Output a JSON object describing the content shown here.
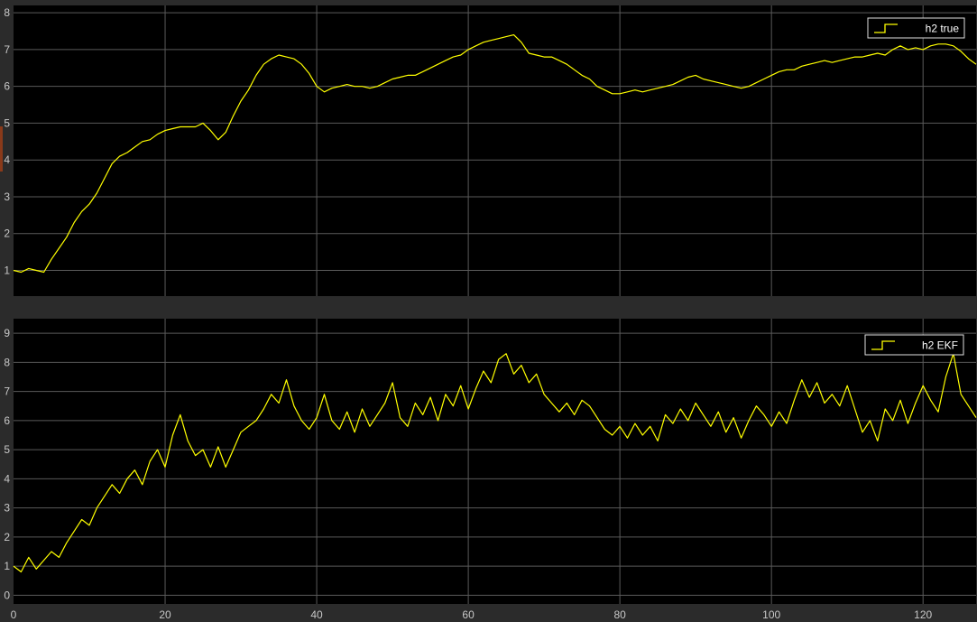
{
  "colors": {
    "background": "#2b2b2b",
    "plot_bg": "#000000",
    "grid": "#5a5a5a",
    "trace": "#ffff00",
    "tick_text": "#c8c8c8",
    "legend_border": "#e0e0e0",
    "edge_accent": "#8a3a1a"
  },
  "chart_data": [
    {
      "type": "line",
      "title": "",
      "xlabel": "",
      "ylabel": "",
      "xlim": [
        0,
        127
      ],
      "ylim": [
        0.3,
        8.2
      ],
      "grid": true,
      "legend_position": "top-right",
      "legend_icon": "step-line-icon",
      "x_ticks": [
        "0",
        "20",
        "40",
        "60",
        "80",
        "100",
        "120"
      ],
      "y_ticks": [
        "1",
        "2",
        "3",
        "4",
        "5",
        "6",
        "7",
        "8"
      ],
      "series": [
        {
          "name": "h2 true",
          "color": "#ffff00",
          "points": [
            [
              0,
              1.0
            ],
            [
              1,
              0.95
            ],
            [
              2,
              1.05
            ],
            [
              3,
              1.0
            ],
            [
              4,
              0.95
            ],
            [
              5,
              1.3
            ],
            [
              6,
              1.6
            ],
            [
              7,
              1.9
            ],
            [
              8,
              2.3
            ],
            [
              9,
              2.6
            ],
            [
              10,
              2.8
            ],
            [
              11,
              3.1
            ],
            [
              12,
              3.5
            ],
            [
              13,
              3.9
            ],
            [
              14,
              4.1
            ],
            [
              15,
              4.2
            ],
            [
              16,
              4.35
            ],
            [
              17,
              4.5
            ],
            [
              18,
              4.55
            ],
            [
              19,
              4.7
            ],
            [
              20,
              4.8
            ],
            [
              21,
              4.85
            ],
            [
              22,
              4.9
            ],
            [
              23,
              4.9
            ],
            [
              24,
              4.9
            ],
            [
              25,
              5.0
            ],
            [
              26,
              4.8
            ],
            [
              27,
              4.55
            ],
            [
              28,
              4.75
            ],
            [
              29,
              5.2
            ],
            [
              30,
              5.6
            ],
            [
              31,
              5.9
            ],
            [
              32,
              6.3
            ],
            [
              33,
              6.6
            ],
            [
              34,
              6.75
            ],
            [
              35,
              6.85
            ],
            [
              36,
              6.8
            ],
            [
              37,
              6.75
            ],
            [
              38,
              6.6
            ],
            [
              39,
              6.35
            ],
            [
              40,
              6.0
            ],
            [
              41,
              5.85
            ],
            [
              42,
              5.95
            ],
            [
              43,
              6.0
            ],
            [
              44,
              6.05
            ],
            [
              45,
              6.0
            ],
            [
              46,
              6.0
            ],
            [
              47,
              5.95
            ],
            [
              48,
              6.0
            ],
            [
              49,
              6.1
            ],
            [
              50,
              6.2
            ],
            [
              51,
              6.25
            ],
            [
              52,
              6.3
            ],
            [
              53,
              6.3
            ],
            [
              54,
              6.4
            ],
            [
              55,
              6.5
            ],
            [
              56,
              6.6
            ],
            [
              57,
              6.7
            ],
            [
              58,
              6.8
            ],
            [
              59,
              6.85
            ],
            [
              60,
              7.0
            ],
            [
              61,
              7.1
            ],
            [
              62,
              7.2
            ],
            [
              63,
              7.25
            ],
            [
              64,
              7.3
            ],
            [
              65,
              7.35
            ],
            [
              66,
              7.4
            ],
            [
              67,
              7.2
            ],
            [
              68,
              6.9
            ],
            [
              69,
              6.85
            ],
            [
              70,
              6.8
            ],
            [
              71,
              6.8
            ],
            [
              72,
              6.7
            ],
            [
              73,
              6.6
            ],
            [
              74,
              6.45
            ],
            [
              75,
              6.3
            ],
            [
              76,
              6.2
            ],
            [
              77,
              6.0
            ],
            [
              78,
              5.9
            ],
            [
              79,
              5.8
            ],
            [
              80,
              5.8
            ],
            [
              81,
              5.85
            ],
            [
              82,
              5.9
            ],
            [
              83,
              5.85
            ],
            [
              84,
              5.9
            ],
            [
              85,
              5.95
            ],
            [
              86,
              6.0
            ],
            [
              87,
              6.05
            ],
            [
              88,
              6.15
            ],
            [
              89,
              6.25
            ],
            [
              90,
              6.3
            ],
            [
              91,
              6.2
            ],
            [
              92,
              6.15
            ],
            [
              93,
              6.1
            ],
            [
              94,
              6.05
            ],
            [
              95,
              6.0
            ],
            [
              96,
              5.95
            ],
            [
              97,
              6.0
            ],
            [
              98,
              6.1
            ],
            [
              99,
              6.2
            ],
            [
              100,
              6.3
            ],
            [
              101,
              6.4
            ],
            [
              102,
              6.45
            ],
            [
              103,
              6.45
            ],
            [
              104,
              6.55
            ],
            [
              105,
              6.6
            ],
            [
              106,
              6.65
            ],
            [
              107,
              6.7
            ],
            [
              108,
              6.65
            ],
            [
              109,
              6.7
            ],
            [
              110,
              6.75
            ],
            [
              111,
              6.8
            ],
            [
              112,
              6.8
            ],
            [
              113,
              6.85
            ],
            [
              114,
              6.9
            ],
            [
              115,
              6.85
            ],
            [
              116,
              7.0
            ],
            [
              117,
              7.1
            ],
            [
              118,
              7.0
            ],
            [
              119,
              7.05
            ],
            [
              120,
              7.0
            ],
            [
              121,
              7.1
            ],
            [
              122,
              7.15
            ],
            [
              123,
              7.15
            ],
            [
              124,
              7.1
            ],
            [
              125,
              6.95
            ],
            [
              126,
              6.75
            ],
            [
              127,
              6.6
            ]
          ]
        }
      ]
    },
    {
      "type": "line",
      "title": "",
      "xlabel": "",
      "ylabel": "",
      "xlim": [
        0,
        127
      ],
      "ylim": [
        -0.3,
        9.5
      ],
      "grid": true,
      "legend_position": "top-right",
      "legend_icon": "step-line-icon",
      "x_ticks": [
        "0",
        "20",
        "40",
        "60",
        "80",
        "100",
        "120"
      ],
      "y_ticks": [
        "0",
        "1",
        "2",
        "3",
        "4",
        "5",
        "6",
        "7",
        "8",
        "9"
      ],
      "series": [
        {
          "name": "h2 EKF",
          "color": "#ffff00",
          "points": [
            [
              0,
              1.0
            ],
            [
              1,
              0.8
            ],
            [
              2,
              1.3
            ],
            [
              3,
              0.9
            ],
            [
              4,
              1.2
            ],
            [
              5,
              1.5
            ],
            [
              6,
              1.3
            ],
            [
              7,
              1.8
            ],
            [
              8,
              2.2
            ],
            [
              9,
              2.6
            ],
            [
              10,
              2.4
            ],
            [
              11,
              3.0
            ],
            [
              12,
              3.4
            ],
            [
              13,
              3.8
            ],
            [
              14,
              3.5
            ],
            [
              15,
              4.0
            ],
            [
              16,
              4.3
            ],
            [
              17,
              3.8
            ],
            [
              18,
              4.6
            ],
            [
              19,
              5.0
            ],
            [
              20,
              4.4
            ],
            [
              21,
              5.5
            ],
            [
              22,
              6.2
            ],
            [
              23,
              5.3
            ],
            [
              24,
              4.8
            ],
            [
              25,
              5.0
            ],
            [
              26,
              4.4
            ],
            [
              27,
              5.1
            ],
            [
              28,
              4.4
            ],
            [
              29,
              5.0
            ],
            [
              30,
              5.6
            ],
            [
              31,
              5.8
            ],
            [
              32,
              6.0
            ],
            [
              33,
              6.4
            ],
            [
              34,
              6.9
            ],
            [
              35,
              6.6
            ],
            [
              36,
              7.4
            ],
            [
              37,
              6.5
            ],
            [
              38,
              6.0
            ],
            [
              39,
              5.7
            ],
            [
              40,
              6.1
            ],
            [
              41,
              6.9
            ],
            [
              42,
              6.0
            ],
            [
              43,
              5.7
            ],
            [
              44,
              6.3
            ],
            [
              45,
              5.6
            ],
            [
              46,
              6.4
            ],
            [
              47,
              5.8
            ],
            [
              48,
              6.2
            ],
            [
              49,
              6.6
            ],
            [
              50,
              7.3
            ],
            [
              51,
              6.1
            ],
            [
              52,
              5.8
            ],
            [
              53,
              6.6
            ],
            [
              54,
              6.2
            ],
            [
              55,
              6.8
            ],
            [
              56,
              6.0
            ],
            [
              57,
              6.9
            ],
            [
              58,
              6.5
            ],
            [
              59,
              7.2
            ],
            [
              60,
              6.4
            ],
            [
              61,
              7.1
            ],
            [
              62,
              7.7
            ],
            [
              63,
              7.3
            ],
            [
              64,
              8.1
            ],
            [
              65,
              8.3
            ],
            [
              66,
              7.6
            ],
            [
              67,
              7.9
            ],
            [
              68,
              7.3
            ],
            [
              69,
              7.6
            ],
            [
              70,
              6.9
            ],
            [
              71,
              6.6
            ],
            [
              72,
              6.3
            ],
            [
              73,
              6.6
            ],
            [
              74,
              6.2
            ],
            [
              75,
              6.7
            ],
            [
              76,
              6.5
            ],
            [
              77,
              6.1
            ],
            [
              78,
              5.7
            ],
            [
              79,
              5.5
            ],
            [
              80,
              5.8
            ],
            [
              81,
              5.4
            ],
            [
              82,
              5.9
            ],
            [
              83,
              5.5
            ],
            [
              84,
              5.8
            ],
            [
              85,
              5.3
            ],
            [
              86,
              6.2
            ],
            [
              87,
              5.9
            ],
            [
              88,
              6.4
            ],
            [
              89,
              6.0
            ],
            [
              90,
              6.6
            ],
            [
              91,
              6.2
            ],
            [
              92,
              5.8
            ],
            [
              93,
              6.3
            ],
            [
              94,
              5.6
            ],
            [
              95,
              6.1
            ],
            [
              96,
              5.4
            ],
            [
              97,
              6.0
            ],
            [
              98,
              6.5
            ],
            [
              99,
              6.2
            ],
            [
              100,
              5.8
            ],
            [
              101,
              6.3
            ],
            [
              102,
              5.9
            ],
            [
              103,
              6.7
            ],
            [
              104,
              7.4
            ],
            [
              105,
              6.8
            ],
            [
              106,
              7.3
            ],
            [
              107,
              6.6
            ],
            [
              108,
              6.9
            ],
            [
              109,
              6.5
            ],
            [
              110,
              7.2
            ],
            [
              111,
              6.4
            ],
            [
              112,
              5.6
            ],
            [
              113,
              6.0
            ],
            [
              114,
              5.3
            ],
            [
              115,
              6.4
            ],
            [
              116,
              6.0
            ],
            [
              117,
              6.7
            ],
            [
              118,
              5.9
            ],
            [
              119,
              6.6
            ],
            [
              120,
              7.2
            ],
            [
              121,
              6.7
            ],
            [
              122,
              6.3
            ],
            [
              123,
              7.5
            ],
            [
              124,
              8.3
            ],
            [
              125,
              6.9
            ],
            [
              126,
              6.5
            ],
            [
              127,
              6.1
            ]
          ]
        }
      ]
    }
  ]
}
